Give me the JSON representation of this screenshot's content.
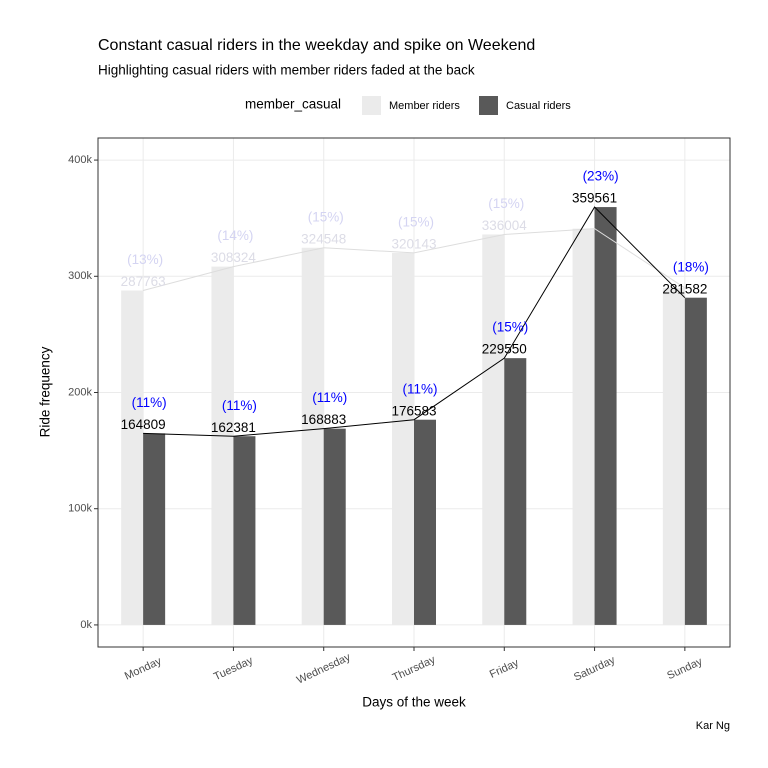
{
  "chart_data": {
    "type": "bar",
    "title": "Constant casual riders in the weekday and spike on Weekend",
    "subtitle": "Highlighting casual riders with member riders faded at the back",
    "caption": "Kar Ng",
    "x_label": "Days of the week",
    "y_label": "Ride frequency",
    "legend_title": "member_casual",
    "categories": [
      "Monday",
      "Tuesday",
      "Wednesday",
      "Thursday",
      "Friday",
      "Saturday",
      "Sunday"
    ],
    "series": [
      {
        "name": "Member riders",
        "color": "#ebebeb",
        "line_color": "#dddddd",
        "label_color": "#dcdce6",
        "share_color": "#d4d4f2",
        "values": [
          287763,
          308324,
          324548,
          320143,
          336004,
          341000,
          290000
        ],
        "value_labels": [
          "287763",
          "308324",
          "324548",
          "320143",
          "336004",
          null,
          null
        ],
        "share_labels": [
          "(13%)",
          "(14%)",
          "(15%)",
          "(15%)",
          "(15%)",
          null,
          null
        ]
      },
      {
        "name": "Casual riders",
        "color": "#595959",
        "line_color": "#000000",
        "label_color": "#000000",
        "share_color": "#0000ff",
        "values": [
          164809,
          162381,
          168883,
          176583,
          229550,
          359561,
          281582
        ],
        "value_labels": [
          "164809",
          "162381",
          "168883",
          "176583",
          "229550",
          "359561",
          "281582"
        ],
        "share_labels": [
          "(11%)",
          "(11%)",
          "(11%)",
          "(11%)",
          "(15%)",
          "(23%)",
          "(18%)"
        ]
      }
    ],
    "ylim": [
      -19000,
      419000
    ],
    "yticks": [
      {
        "value": 0,
        "label": "0k"
      },
      {
        "value": 100000,
        "label": "100k"
      },
      {
        "value": 200000,
        "label": "200k"
      },
      {
        "value": 300000,
        "label": "300k"
      },
      {
        "value": 400000,
        "label": "400k"
      }
    ],
    "grid": true
  }
}
